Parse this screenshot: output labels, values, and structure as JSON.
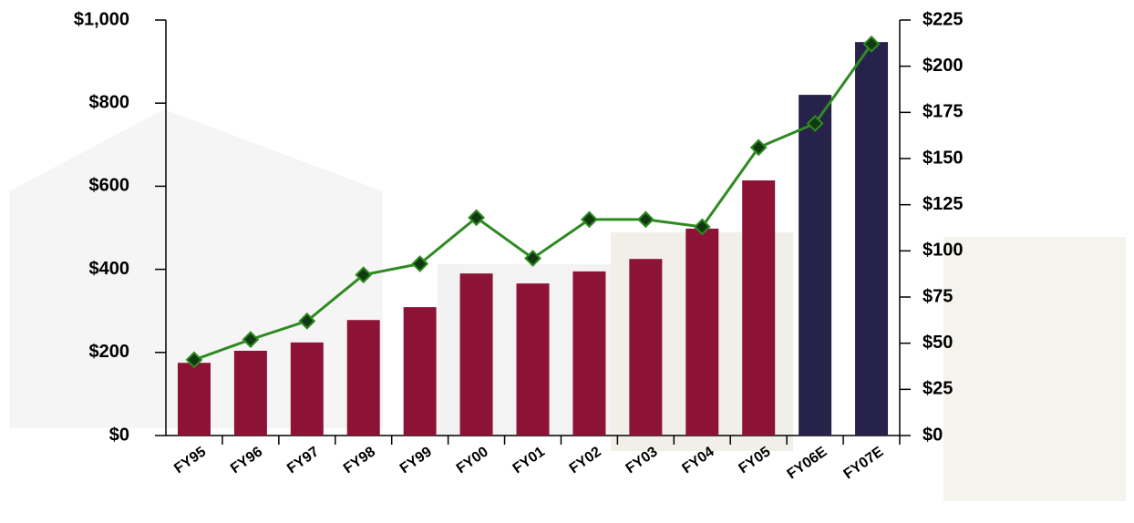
{
  "chart_data": {
    "type": "bar-line",
    "categories": [
      "FY95",
      "FY96",
      "FY97",
      "FY98",
      "FY99",
      "FY00",
      "FY01",
      "FY02",
      "FY03",
      "FY04",
      "FY05",
      "FY06E",
      "FY07E"
    ],
    "series": [
      {
        "type": "bar",
        "colors": [
          "#8c1335",
          "#8c1335",
          "#8c1335",
          "#8c1335",
          "#8c1335",
          "#8c1335",
          "#8c1335",
          "#8c1335",
          "#8c1335",
          "#8c1335",
          "#8c1335",
          "#27224a",
          "#27224a"
        ],
        "values": [
          175,
          204,
          224,
          278,
          309,
          390,
          366,
          395,
          425,
          498,
          614,
          820,
          947
        ]
      },
      {
        "type": "line",
        "axis": "y2",
        "color": "#2f8a22",
        "marker_color": "#103a10",
        "values": [
          41,
          52,
          62,
          87,
          93,
          118,
          96,
          117,
          117,
          113,
          156,
          169,
          212
        ]
      }
    ],
    "ylim": [
      0,
      1000
    ],
    "yticks": [
      {
        "value": 0,
        "label": "$0"
      },
      {
        "value": 200,
        "label": "$200"
      },
      {
        "value": 400,
        "label": "$400"
      },
      {
        "value": 600,
        "label": "$600"
      },
      {
        "value": 800,
        "label": "$800"
      },
      {
        "value": 1000,
        "label": "$1,000"
      }
    ],
    "y2lim": [
      0,
      225
    ],
    "y2ticks": [
      {
        "value": 0,
        "label": "$0"
      },
      {
        "value": 25,
        "label": "$25"
      },
      {
        "value": 50,
        "label": "$50"
      },
      {
        "value": 75,
        "label": "$75"
      },
      {
        "value": 100,
        "label": "$100"
      },
      {
        "value": 125,
        "label": "$125"
      },
      {
        "value": 150,
        "label": "$150"
      },
      {
        "value": 175,
        "label": "$175"
      },
      {
        "value": 200,
        "label": "$200"
      },
      {
        "value": 225,
        "label": "$225"
      }
    ]
  }
}
